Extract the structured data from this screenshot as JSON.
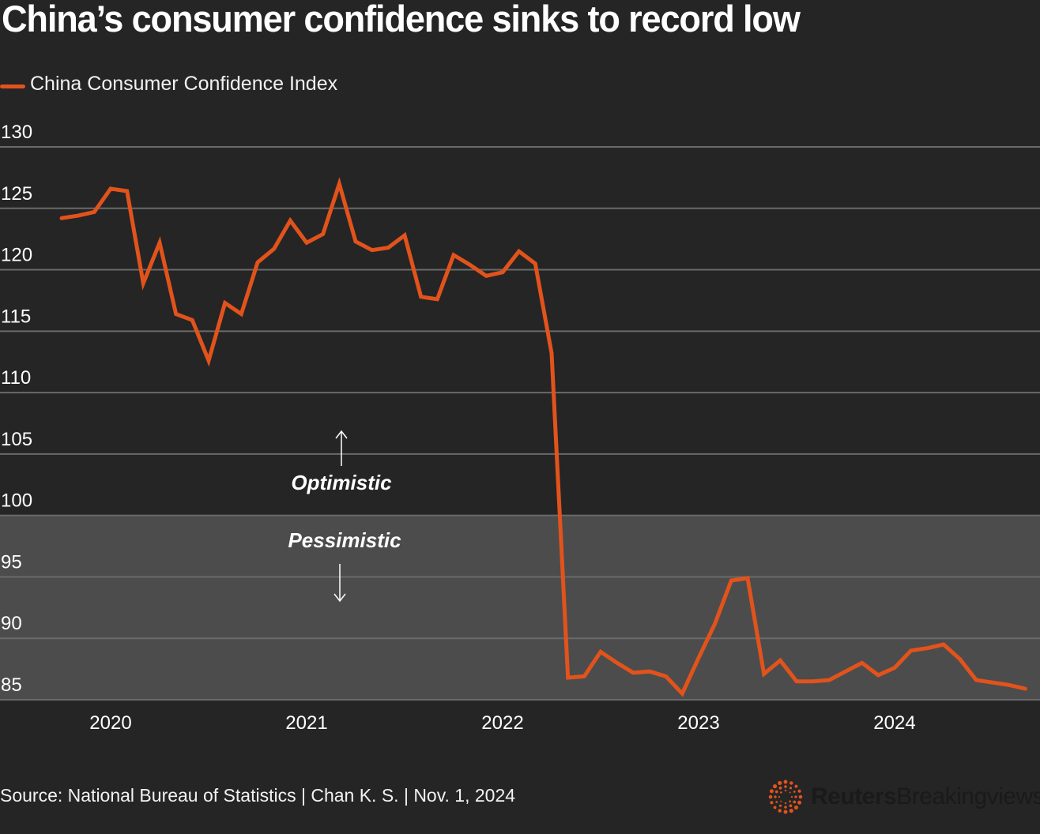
{
  "chart_data": {
    "type": "line",
    "title": "China’s consumer confidence sinks to record low",
    "xlabel": "",
    "ylabel": "",
    "ylim": [
      85,
      130
    ],
    "yticks": [
      130,
      125,
      120,
      115,
      110,
      105,
      100,
      95,
      90,
      85
    ],
    "xticks": [
      "2020",
      "2021",
      "2022",
      "2023",
      "2024"
    ],
    "grid": true,
    "legend_position": "top-left",
    "shaded_regions": [
      {
        "from": 85,
        "to": 100,
        "label": "Pessimistic"
      }
    ],
    "annotations": [
      {
        "text": "Optimistic",
        "direction": "up"
      },
      {
        "text": "Pessimistic",
        "direction": "down"
      }
    ],
    "series": [
      {
        "name": "China Consumer Confidence Index",
        "color": "#e2531c",
        "x": [
          "2019-10",
          "2019-11",
          "2019-12",
          "2020-01",
          "2020-02",
          "2020-03",
          "2020-04",
          "2020-05",
          "2020-06",
          "2020-07",
          "2020-08",
          "2020-09",
          "2020-10",
          "2020-11",
          "2020-12",
          "2021-01",
          "2021-02",
          "2021-03",
          "2021-04",
          "2021-05",
          "2021-06",
          "2021-07",
          "2021-08",
          "2021-09",
          "2021-10",
          "2021-11",
          "2021-12",
          "2022-01",
          "2022-02",
          "2022-03",
          "2022-04",
          "2022-05",
          "2022-06",
          "2022-07",
          "2022-08",
          "2022-09",
          "2022-10",
          "2022-11",
          "2022-12",
          "2023-01",
          "2023-02",
          "2023-03",
          "2023-04",
          "2023-05",
          "2023-06",
          "2023-07",
          "2023-08",
          "2023-09",
          "2023-10",
          "2023-11",
          "2023-12",
          "2024-01",
          "2024-02",
          "2024-03",
          "2024-04",
          "2024-05",
          "2024-06",
          "2024-07",
          "2024-08",
          "2024-09"
        ],
        "values": [
          124.2,
          124.4,
          124.7,
          126.6,
          126.4,
          118.9,
          122.2,
          116.4,
          115.9,
          112.6,
          117.3,
          116.4,
          120.6,
          121.7,
          124.0,
          122.2,
          122.9,
          127.0,
          122.3,
          121.6,
          121.8,
          122.8,
          117.8,
          117.6,
          121.2,
          120.4,
          119.5,
          119.8,
          121.5,
          120.5,
          113.2,
          86.8,
          86.9,
          88.9,
          88.0,
          87.2,
          87.3,
          86.9,
          85.5,
          88.4,
          91.2,
          94.7,
          94.9,
          87.1,
          88.2,
          86.5,
          86.5,
          86.6,
          87.3,
          88.0,
          87.0,
          87.6,
          89.0,
          89.2,
          89.5,
          88.3,
          86.6,
          86.4,
          86.2,
          85.9
        ]
      }
    ]
  },
  "legend": {
    "label": "China Consumer Confidence Index"
  },
  "footer": {
    "source": "Source: National Bureau of Statistics | Chan K. S. | Nov. 1, 2024",
    "logo_bold": "Reuters",
    "logo_light": "Breakingviews"
  },
  "colors": {
    "background": "#252525",
    "shade": "#4c4c4c",
    "grid": "#6a6a6a",
    "line": "#e2531c"
  }
}
